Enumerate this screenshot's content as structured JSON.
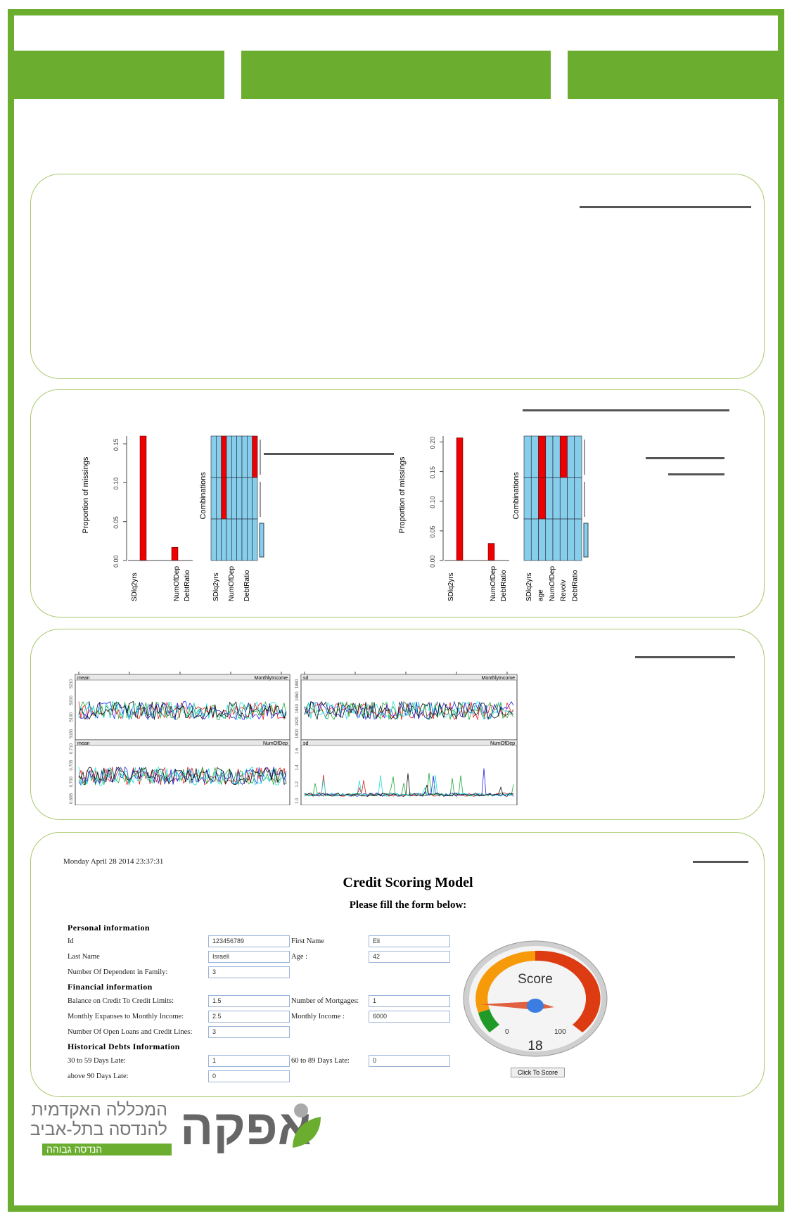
{
  "chart_data": [
    {
      "type": "bar",
      "title": "",
      "ylabel": "Proportion of missings",
      "ylim": [
        0,
        0.16
      ],
      "yticks": [
        "0.00",
        "0.05",
        "0.10",
        "0.15"
      ],
      "categories": [
        "SDlq2yrs",
        "",
        "",
        "",
        "NumOfDep",
        "DebtRatio"
      ],
      "values": [
        0,
        0.16,
        0,
        0,
        0.017,
        0
      ]
    },
    {
      "type": "heatmap",
      "ylabel": "Combinations",
      "xlabels": [
        "SDlq2yrs",
        "NumOfDep",
        "DebtRatio"
      ],
      "columns": 9,
      "rows": 3,
      "missing_cells": [
        [
          0,
          2
        ],
        [
          1,
          2
        ],
        [
          0,
          8
        ]
      ]
    },
    {
      "type": "bar",
      "title": "",
      "ylabel": "Proportion of missings",
      "ylim": [
        0,
        0.21
      ],
      "yticks": [
        "0.00",
        "0.05",
        "0.10",
        "0.15",
        "0.20"
      ],
      "categories": [
        "SDlq2yrs",
        "",
        "",
        "",
        "NumOfDep",
        "DebtRatio"
      ],
      "values": [
        0,
        0.207,
        0,
        0,
        0.029,
        0
      ]
    },
    {
      "type": "heatmap",
      "ylabel": "Combinations",
      "xlabels": [
        "SDlq2yrs",
        "age",
        "NumOfDep",
        "Revolv",
        "DebtRatio"
      ],
      "columns": 8,
      "rows": 3,
      "missing_cells": [
        [
          0,
          2
        ],
        [
          1,
          2
        ],
        [
          0,
          5
        ]
      ]
    },
    {
      "type": "line",
      "panels": [
        {
          "stat": "mean",
          "var": "MonthlyIncome",
          "yticks": [
            "5180",
            "5190",
            "5200",
            "5210"
          ]
        },
        {
          "stat": "sd",
          "var": "MonthlyIncome",
          "yticks": [
            "1800",
            "1820",
            "1840",
            "1860",
            "1880"
          ]
        },
        {
          "stat": "mean",
          "var": "NumOfDep",
          "yticks": [
            "0.695",
            "0.700",
            "0.705",
            "0.710"
          ]
        },
        {
          "stat": "sd",
          "var": "NumOfDep",
          "yticks": [
            "1.0",
            "1.2",
            "1.4",
            "1.6"
          ]
        }
      ],
      "series_colors": [
        "#e41a1c",
        "#1faa3a",
        "#2222dd",
        "#22dddd",
        "#111111"
      ]
    }
  ],
  "form": {
    "date": "Monday April 28 2014 23:37:31",
    "title": "Credit Scoring Model",
    "subtitle": "Please fill the form below:",
    "sections": [
      "Personal information",
      "Financial information",
      "Historical Debts Information"
    ],
    "fields": {
      "id": {
        "label": "Id",
        "value": "123456789"
      },
      "first_name": {
        "label": "First Name",
        "value": "Eli"
      },
      "last_name": {
        "label": "Last Name",
        "value": "Israeli"
      },
      "age": {
        "label": "Age :",
        "value": "42"
      },
      "dependents": {
        "label": "Number Of Dependent in Family:",
        "value": "3"
      },
      "balance": {
        "label": "Balance on Credit To Credit Limits:",
        "value": "1.5"
      },
      "mortgages": {
        "label": "Number of Mortgages:",
        "value": "1"
      },
      "expenses": {
        "label": "Monthly Expanses to Monthly Income:",
        "value": "2.5"
      },
      "income": {
        "label": "Monthly Income :",
        "value": "6000"
      },
      "open_loans": {
        "label": "Number Of Open Loans and Credit Lines:",
        "value": "3"
      },
      "late30": {
        "label": "30 to 59 Days Late:",
        "value": "1"
      },
      "late60": {
        "label": "60 to 89 Days Late:",
        "value": "0"
      },
      "late90": {
        "label": "above 90 Days Late:",
        "value": "0"
      }
    },
    "gauge": {
      "title": "Score",
      "min_label": "0",
      "max_label": "100",
      "value": 18,
      "value_label": "18"
    },
    "button": "Click To Score"
  },
  "logo": {
    "name": "אפקה",
    "line1": "המכללה האקדמית",
    "line2": "להנדסה בתל-אביב",
    "tag": "הנדסה גבוהה"
  },
  "colors": {
    "brand_green": "#6aad2f",
    "missing": "#ee0000",
    "observed": "#87ceeb"
  }
}
